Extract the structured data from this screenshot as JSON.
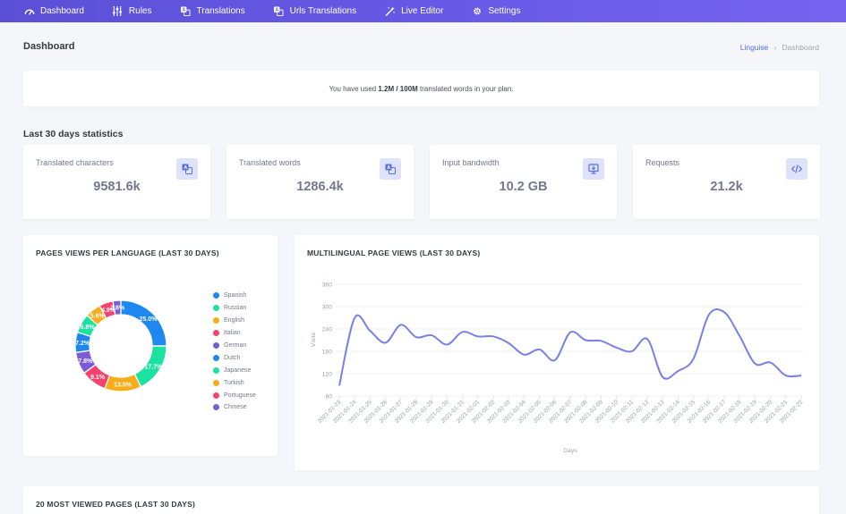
{
  "nav": {
    "items": [
      {
        "label": "Dashboard",
        "icon": "speedometer-icon"
      },
      {
        "label": "Rules",
        "icon": "sliders-icon"
      },
      {
        "label": "Translations",
        "icon": "translate-icon"
      },
      {
        "label": "Urls Translations",
        "icon": "translate-icon"
      },
      {
        "label": "Live Editor",
        "icon": "magic-wand-icon"
      },
      {
        "label": "Settings",
        "icon": "gear-icon"
      }
    ]
  },
  "header": {
    "title": "Dashboard",
    "breadcrumb": {
      "root": "Linguise",
      "separator": "›",
      "current": "Dashboard"
    }
  },
  "usage": {
    "prefix": "You have used ",
    "used": "1.2M",
    "sep": " / ",
    "total": "100M",
    "suffix": " translated words in your plan."
  },
  "stats": {
    "title": "Last 30 days statistics",
    "cards": [
      {
        "label": "Translated characters",
        "value": "9581.6k",
        "icon": "translate-icon"
      },
      {
        "label": "Translated words",
        "value": "1286.4k",
        "icon": "translate-icon"
      },
      {
        "label": "Input bandwidth",
        "value": "10.2 GB",
        "icon": "monitor-download-icon"
      },
      {
        "label": "Requests",
        "value": "21.2k",
        "icon": "code-arrows-icon"
      }
    ]
  },
  "colors": {
    "accent": "#556ee6",
    "blue": "#1e88f0",
    "green": "#1ce29f",
    "orange": "#f9ad1a",
    "red": "#f4436e",
    "purple": "#7a5bd8"
  },
  "donut": {
    "title": "PAGES VIEWS PER LANGUAGE (LAST 30 DAYS)",
    "chart_data": {
      "type": "pie",
      "categories": [
        "Spanish",
        "Russian",
        "English",
        "Italian",
        "German",
        "Dutch",
        "Japanese",
        "Turkish",
        "Portuguese",
        "Chinese"
      ],
      "values": [
        25.0,
        17.7,
        13.0,
        9.1,
        7.8,
        7.2,
        6.8,
        5.6,
        4.9,
        2.8
      ],
      "labels": [
        "25.0%",
        "17.7%",
        "13.0%",
        "9.1%",
        "7.8%",
        "7.2%",
        "6.8%",
        "5.6%",
        "4.9%",
        "2.8%"
      ],
      "colors": [
        "#1e88f0",
        "#1ce29f",
        "#f9ad1a",
        "#f4436e",
        "#7a5bd8",
        "#1e88f0",
        "#1ce29f",
        "#f9ad1a",
        "#f4436e",
        "#7a5bd8"
      ],
      "legend": "right"
    }
  },
  "line": {
    "title": "MULTILINGUAL PAGE VIEWS (LAST 30 DAYS)",
    "chart_data": {
      "type": "line",
      "xlabel": "Days",
      "ylabel": "Visits",
      "ylim": [
        60,
        360
      ],
      "yticks": [
        60,
        120,
        180,
        240,
        300,
        360
      ],
      "grid": true,
      "x": [
        "2021-01-23",
        "2021-01-24",
        "2021-01-25",
        "2021-01-26",
        "2021-01-27",
        "2021-01-28",
        "2021-01-29",
        "2021-01-30",
        "2021-01-31",
        "2021-02-01",
        "2021-02-02",
        "2021-02-03",
        "2021-02-04",
        "2021-02-05",
        "2021-02-06",
        "2021-02-07",
        "2021-02-08",
        "2021-02-09",
        "2021-02-10",
        "2021-02-11",
        "2021-02-12",
        "2021-02-13",
        "2021-02-14",
        "2021-02-15",
        "2021-02-16",
        "2021-02-17",
        "2021-02-18",
        "2021-02-19",
        "2021-02-20",
        "2021-02-21",
        "2021-02-22"
      ],
      "series": [
        {
          "values": [
            88,
            270,
            235,
            203,
            251,
            218,
            223,
            198,
            232,
            220,
            220,
            202,
            171,
            185,
            156,
            231,
            210,
            208,
            190,
            180,
            213,
            111,
            127,
            160,
            278,
            285,
            221,
            147,
            150,
            115,
            115
          ],
          "color": "#7b80e6"
        }
      ]
    }
  },
  "bottom": {
    "title": "20 MOST VIEWED PAGES (LAST 30 DAYS)"
  }
}
